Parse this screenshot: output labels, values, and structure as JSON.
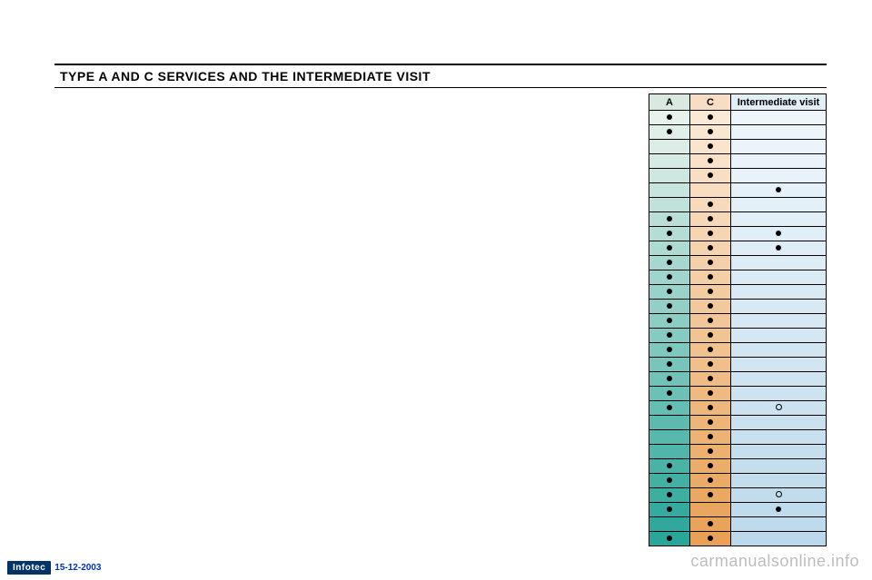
{
  "title": "TYPE A AND C SERVICES AND THE INTERMEDIATE VISIT",
  "headers": {
    "a": "A",
    "c": "C",
    "i": "Intermediate visit"
  },
  "colors": {
    "a_top": "#e8f2ec",
    "a_bot": "#2aa59a",
    "c_top": "#fbe9d6",
    "c_bot": "#e8a156",
    "i_top": "#eef6fb",
    "i_bot": "#bcd9eb",
    "hdr_a": "#d8e9e0",
    "hdr_c": "#f6ddc3",
    "hdr_i": "#e3eff7"
  },
  "rows": [
    {
      "a": "dot",
      "c": "dot",
      "i": ""
    },
    {
      "a": "dot",
      "c": "dot",
      "i": ""
    },
    {
      "a": "",
      "c": "dot",
      "i": ""
    },
    {
      "a": "",
      "c": "dot",
      "i": ""
    },
    {
      "a": "",
      "c": "dot",
      "i": ""
    },
    {
      "a": "",
      "c": "",
      "i": "dot"
    },
    {
      "a": "",
      "c": "dot",
      "i": ""
    },
    {
      "a": "dot",
      "c": "dot",
      "i": ""
    },
    {
      "a": "dot",
      "c": "dot",
      "i": "dot"
    },
    {
      "a": "dot",
      "c": "dot",
      "i": "dot"
    },
    {
      "a": "dot",
      "c": "dot",
      "i": ""
    },
    {
      "a": "dot",
      "c": "dot",
      "i": ""
    },
    {
      "a": "dot",
      "c": "dot",
      "i": ""
    },
    {
      "a": "dot",
      "c": "dot",
      "i": ""
    },
    {
      "a": "dot",
      "c": "dot",
      "i": ""
    },
    {
      "a": "dot",
      "c": "dot",
      "i": ""
    },
    {
      "a": "dot",
      "c": "dot",
      "i": ""
    },
    {
      "a": "dot",
      "c": "dot",
      "i": ""
    },
    {
      "a": "dot",
      "c": "dot",
      "i": ""
    },
    {
      "a": "dot",
      "c": "dot",
      "i": ""
    },
    {
      "a": "dot",
      "c": "dot",
      "i": "ring"
    },
    {
      "a": "",
      "c": "dot",
      "i": ""
    },
    {
      "a": "",
      "c": "dot",
      "i": ""
    },
    {
      "a": "",
      "c": "dot",
      "i": ""
    },
    {
      "a": "dot",
      "c": "dot",
      "i": ""
    },
    {
      "a": "dot",
      "c": "dot",
      "i": ""
    },
    {
      "a": "dot",
      "c": "dot",
      "i": "ring"
    },
    {
      "a": "dot",
      "c": "",
      "i": "dot"
    },
    {
      "a": "",
      "c": "dot",
      "i": ""
    },
    {
      "a": "dot",
      "c": "dot",
      "i": ""
    }
  ],
  "footer": {
    "brand": "Infotec",
    "date": "15-12-2003"
  },
  "watermark": "carmanualsonline.info"
}
